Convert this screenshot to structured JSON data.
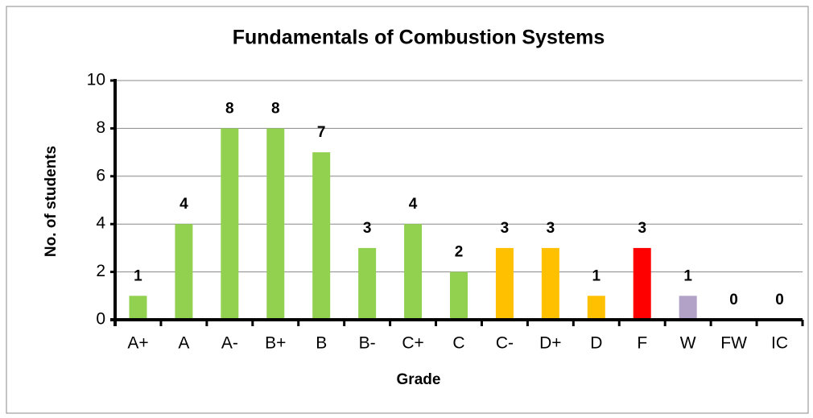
{
  "chart_data": {
    "type": "bar",
    "title": "Fundamentals of Combustion Systems",
    "x_label": "Grade",
    "y_label": "No. of students",
    "categories": [
      "A+",
      "A",
      "A-",
      "B+",
      "B",
      "B-",
      "C+",
      "C",
      "C-",
      "D+",
      "D",
      "F",
      "W",
      "FW",
      "IC"
    ],
    "values": [
      1,
      4,
      8,
      8,
      7,
      3,
      4,
      2,
      3,
      3,
      1,
      3,
      1,
      0,
      0
    ],
    "colors": [
      "#92d050",
      "#92d050",
      "#92d050",
      "#92d050",
      "#92d050",
      "#92d050",
      "#92d050",
      "#92d050",
      "#ffc000",
      "#ffc000",
      "#ffc000",
      "#ff0000",
      "#b3a2c7",
      "#b3a2c7",
      "#b3a2c7"
    ],
    "ylim": [
      0,
      10
    ],
    "yticks": [
      0,
      2,
      4,
      6,
      8,
      10
    ],
    "grid": true
  }
}
